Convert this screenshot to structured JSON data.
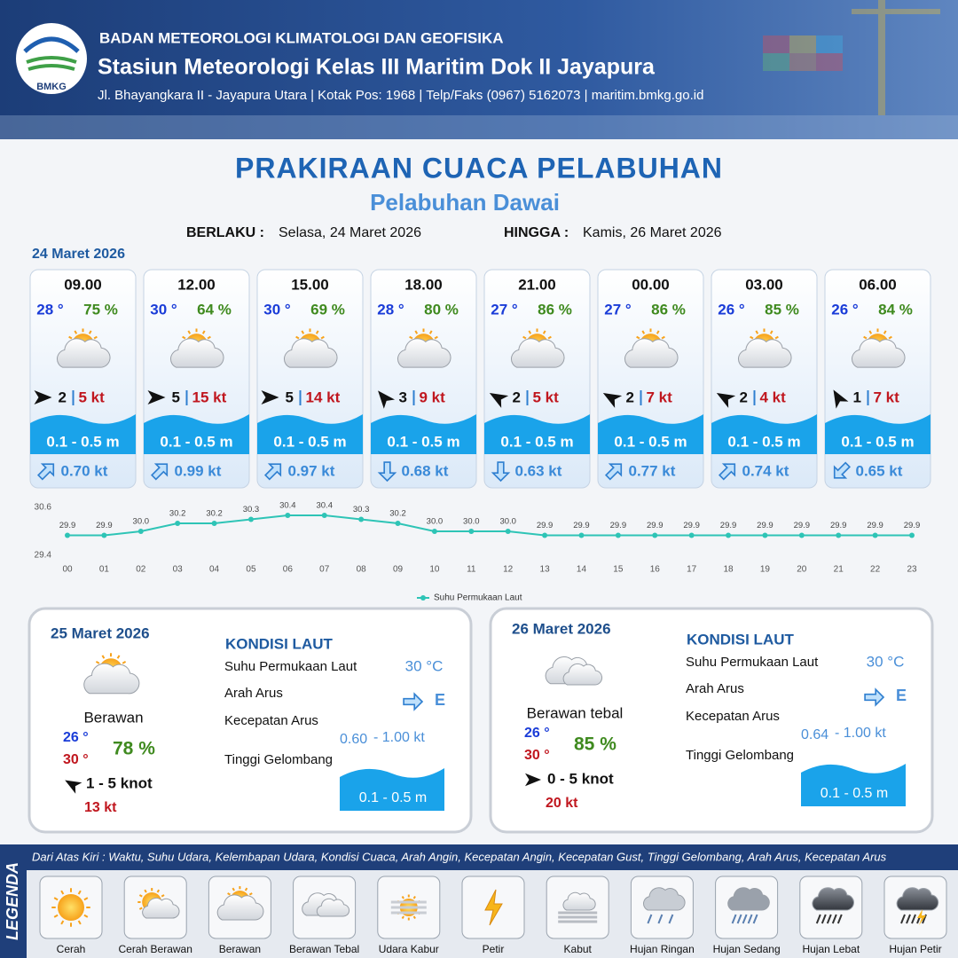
{
  "header": {
    "agency": "BADAN METEOROLOGI KLIMATOLOGI DAN GEOFISIKA",
    "station": "Stasiun Meteorologi Kelas III Maritim Dok II Jayapura",
    "address": "Jl. Bhayangkara II - Jayapura Utara | Kotak Pos: 1968 | Telp/Faks (0967) 5162073 | maritim.bmkg.go.id",
    "logo_text": "BMKG"
  },
  "title": "PRAKIRAAN CUACA PELABUHAN",
  "subtitle": "Pelabuhan Dawai",
  "validity": {
    "from_label": "BERLAKU :",
    "from": "Selasa, 24 Maret 2026",
    "to_label": "HINGGA :",
    "to": "Kamis, 26 Maret 2026"
  },
  "day1_date": "24 Maret 2026",
  "forecasts": [
    {
      "time": "09.00",
      "temp": "28 °",
      "humidity": "75 %",
      "wind": "2",
      "gust": "5 kt",
      "wave": "0.1 - 0.5 m",
      "current": "0.70 kt"
    },
    {
      "time": "12.00",
      "temp": "30 °",
      "humidity": "64 %",
      "wind": "5",
      "gust": "15 kt",
      "wave": "0.1 - 0.5 m",
      "current": "0.99 kt"
    },
    {
      "time": "15.00",
      "temp": "30 °",
      "humidity": "69 %",
      "wind": "5",
      "gust": "14 kt",
      "wave": "0.1 - 0.5 m",
      "current": "0.97 kt"
    },
    {
      "time": "18.00",
      "temp": "28 °",
      "humidity": "80 %",
      "wind": "3",
      "gust": "9 kt",
      "wave": "0.1 - 0.5 m",
      "current": "0.68 kt"
    },
    {
      "time": "21.00",
      "temp": "27 °",
      "humidity": "86 %",
      "wind": "2",
      "gust": "5 kt",
      "wave": "0.1 - 0.5 m",
      "current": "0.63 kt"
    },
    {
      "time": "00.00",
      "temp": "27 °",
      "humidity": "86 %",
      "wind": "2",
      "gust": "7 kt",
      "wave": "0.1 - 0.5 m",
      "current": "0.77 kt"
    },
    {
      "time": "03.00",
      "temp": "26 °",
      "humidity": "85 %",
      "wind": "2",
      "gust": "4 kt",
      "wave": "0.1 - 0.5 m",
      "current": "0.74 kt"
    },
    {
      "time": "06.00",
      "temp": "26 °",
      "humidity": "84 %",
      "wind": "1",
      "gust": "7 kt",
      "wave": "0.1 - 0.5 m",
      "current": "0.65 kt"
    }
  ],
  "chart_data": {
    "type": "line",
    "categories": [
      "00",
      "01",
      "02",
      "03",
      "04",
      "05",
      "06",
      "07",
      "08",
      "09",
      "10",
      "11",
      "12",
      "13",
      "14",
      "15",
      "16",
      "17",
      "18",
      "19",
      "20",
      "21",
      "22",
      "23"
    ],
    "series": [
      {
        "name": "Suhu Permukaan Laut",
        "color": "#2ec4b6",
        "values": [
          29.9,
          29.9,
          30.0,
          30.2,
          30.2,
          30.3,
          30.4,
          30.4,
          30.3,
          30.2,
          30.0,
          30.0,
          30.0,
          29.9,
          29.9,
          29.9,
          29.9,
          29.9,
          29.9,
          29.9,
          29.9,
          29.9,
          29.9,
          29.9
        ],
        "value_labels": [
          "29.9",
          "29.9",
          "30.0",
          "30.2",
          "30.2",
          "30.3",
          "30.4",
          "30.4",
          "30.3",
          "30.2",
          "30.0",
          "30.0",
          "30.0",
          "29.9",
          "29.9",
          "29.9",
          "29.9",
          "29.9",
          "29.9",
          "29.9",
          "29.9",
          "29.9",
          "29.9",
          "29.9"
        ]
      }
    ],
    "ylim": [
      29.4,
      30.6
    ],
    "yticks": [
      29.4,
      30.6
    ]
  },
  "sea_heading": "KONDISI LAUT",
  "sea_labels": [
    "Suhu Permukaan Laut",
    "Arah Arus",
    "Kecepatan Arus",
    "Tinggi Gelombang"
  ],
  "days": [
    {
      "date": "25 Maret 2026",
      "condition": "Berawan",
      "temp_min": "26 °",
      "temp_max": "30 °",
      "humidity": "78 %",
      "wind": "1  - 5 knot",
      "gust": "13 kt",
      "sst": "30 °C",
      "current_dir": "E",
      "current_min": "0.60",
      "current_max": "- 1.00 kt",
      "wave": "0.1 - 0.5 m"
    },
    {
      "date": "26 Maret 2026",
      "condition": "Berawan tebal",
      "temp_min": "26 °",
      "temp_max": "30 °",
      "humidity": "85 %",
      "wind": "0  - 5 knot",
      "gust": "20 kt",
      "sst": "30 °C",
      "current_dir": "E",
      "current_min": "0.64",
      "current_max": "- 1.00 kt",
      "wave": "0.1 - 0.5 m"
    }
  ],
  "legend": {
    "title": "LEGENDA",
    "description": "Dari Atas Kiri : Waktu, Suhu Udara, Kelembapan Udara, Kondisi Cuaca, Arah Angin, Kecepatan Angin, Kecepatan Gust, Tinggi Gelombang, Arah Arus, Kecepatan Arus",
    "items": [
      "Cerah",
      "Cerah Berawan",
      "Berawan",
      "Berawan Tebal",
      "Udara Kabur",
      "Petir",
      "Kabut",
      "Hujan Ringan",
      "Hujan Sedang",
      "Hujan Lebat",
      "Hujan Petir"
    ]
  }
}
